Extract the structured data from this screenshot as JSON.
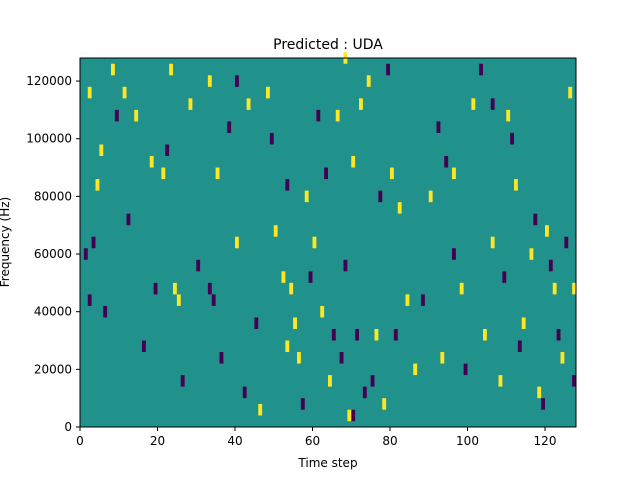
{
  "chart_data": {
    "type": "heatmap",
    "title": "Predicted : UDA",
    "xlabel": "Time step",
    "ylabel": "Frequency (Hz)",
    "xlim": [
      0,
      128
    ],
    "ylim": [
      0,
      128000
    ],
    "xticks": [
      0,
      20,
      40,
      60,
      80,
      100,
      120
    ],
    "yticks": [
      0,
      20000,
      40000,
      60000,
      80000,
      100000,
      120000
    ],
    "grid": false,
    "legend": "none",
    "levels": {
      "low": -1,
      "mid": 0,
      "high": 1
    },
    "colors": {
      "low": "#440154",
      "mid": "#21918c",
      "high": "#fde725"
    },
    "background_level": 0,
    "cell_height_hz": 4000,
    "cells_high": [
      [
        2,
        114000
      ],
      [
        4,
        82000
      ],
      [
        5,
        94000
      ],
      [
        8,
        122000
      ],
      [
        11,
        114000
      ],
      [
        14,
        106000
      ],
      [
        18,
        90000
      ],
      [
        21,
        86000
      ],
      [
        23,
        122000
      ],
      [
        24,
        46000
      ],
      [
        25,
        42000
      ],
      [
        28,
        110000
      ],
      [
        33,
        118000
      ],
      [
        35,
        86000
      ],
      [
        40,
        62000
      ],
      [
        43,
        110000
      ],
      [
        46,
        4000
      ],
      [
        48,
        114000
      ],
      [
        50,
        66000
      ],
      [
        52,
        50000
      ],
      [
        53,
        26000
      ],
      [
        54,
        46000
      ],
      [
        55,
        34000
      ],
      [
        56,
        22000
      ],
      [
        58,
        78000
      ],
      [
        60,
        62000
      ],
      [
        62,
        38000
      ],
      [
        64,
        14000
      ],
      [
        66,
        106000
      ],
      [
        68,
        126000
      ],
      [
        69,
        2000
      ],
      [
        70,
        90000
      ],
      [
        72,
        110000
      ],
      [
        74,
        118000
      ],
      [
        76,
        30000
      ],
      [
        78,
        6000
      ],
      [
        80,
        86000
      ],
      [
        82,
        74000
      ],
      [
        84,
        42000
      ],
      [
        86,
        18000
      ],
      [
        90,
        78000
      ],
      [
        93,
        22000
      ],
      [
        96,
        86000
      ],
      [
        98,
        46000
      ],
      [
        101,
        110000
      ],
      [
        104,
        30000
      ],
      [
        106,
        62000
      ],
      [
        108,
        14000
      ],
      [
        110,
        106000
      ],
      [
        112,
        82000
      ],
      [
        114,
        34000
      ],
      [
        116,
        58000
      ],
      [
        118,
        10000
      ],
      [
        120,
        66000
      ],
      [
        122,
        46000
      ],
      [
        124,
        22000
      ],
      [
        126,
        114000
      ],
      [
        127,
        46000
      ]
    ],
    "cells_low": [
      [
        1,
        58000
      ],
      [
        2,
        42000
      ],
      [
        3,
        62000
      ],
      [
        6,
        38000
      ],
      [
        9,
        106000
      ],
      [
        12,
        70000
      ],
      [
        16,
        26000
      ],
      [
        19,
        46000
      ],
      [
        22,
        94000
      ],
      [
        26,
        14000
      ],
      [
        30,
        54000
      ],
      [
        33,
        46000
      ],
      [
        34,
        42000
      ],
      [
        36,
        22000
      ],
      [
        38,
        102000
      ],
      [
        40,
        118000
      ],
      [
        42,
        10000
      ],
      [
        45,
        34000
      ],
      [
        49,
        98000
      ],
      [
        53,
        82000
      ],
      [
        57,
        6000
      ],
      [
        59,
        50000
      ],
      [
        61,
        106000
      ],
      [
        63,
        86000
      ],
      [
        65,
        30000
      ],
      [
        67,
        22000
      ],
      [
        68,
        54000
      ],
      [
        70,
        2000
      ],
      [
        71,
        30000
      ],
      [
        73,
        10000
      ],
      [
        75,
        14000
      ],
      [
        77,
        78000
      ],
      [
        79,
        122000
      ],
      [
        81,
        30000
      ],
      [
        88,
        42000
      ],
      [
        92,
        102000
      ],
      [
        94,
        90000
      ],
      [
        96,
        58000
      ],
      [
        99,
        18000
      ],
      [
        103,
        122000
      ],
      [
        106,
        110000
      ],
      [
        109,
        50000
      ],
      [
        111,
        98000
      ],
      [
        113,
        26000
      ],
      [
        117,
        70000
      ],
      [
        119,
        6000
      ],
      [
        121,
        54000
      ],
      [
        123,
        30000
      ],
      [
        125,
        62000
      ],
      [
        127,
        14000
      ]
    ]
  }
}
